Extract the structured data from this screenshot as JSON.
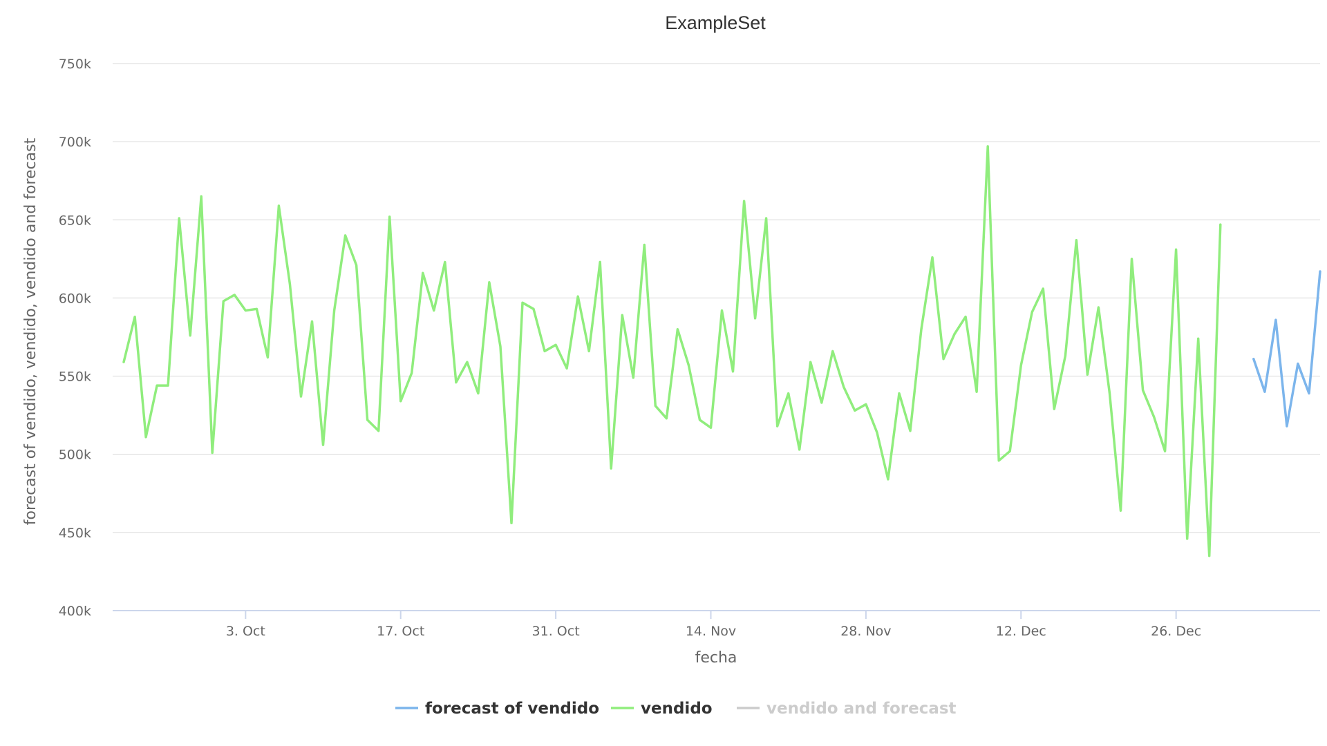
{
  "chart_data": {
    "type": "line",
    "title": "ExampleSet",
    "xlabel": "fecha",
    "ylabel": "forecast of vendido, vendido, vendido and forecast",
    "ylim": [
      400000,
      750000
    ],
    "yticks": [
      {
        "value": 400000,
        "label": "400k"
      },
      {
        "value": 450000,
        "label": "450k"
      },
      {
        "value": 500000,
        "label": "500k"
      },
      {
        "value": 550000,
        "label": "550k"
      },
      {
        "value": 600000,
        "label": "600k"
      },
      {
        "value": 650000,
        "label": "650k"
      },
      {
        "value": 700000,
        "label": "700k"
      },
      {
        "value": 750000,
        "label": "750k"
      }
    ],
    "xlim": [
      "2021-09-21",
      "2022-01-08"
    ],
    "xticks": [
      {
        "date": "2021-10-03",
        "label": "3. Oct"
      },
      {
        "date": "2021-10-17",
        "label": "17. Oct"
      },
      {
        "date": "2021-10-31",
        "label": "31. Oct"
      },
      {
        "date": "2021-11-14",
        "label": "14. Nov"
      },
      {
        "date": "2021-11-28",
        "label": "28. Nov"
      },
      {
        "date": "2021-12-12",
        "label": "12. Dec"
      },
      {
        "date": "2021-12-26",
        "label": "26. Dec"
      }
    ],
    "grid": true,
    "legend_position": "bottom-center",
    "series": [
      {
        "name": "forecast of vendido",
        "color": "#7cb5ec",
        "visible": true,
        "start": "2022-01-02",
        "values": [
          561000,
          540000,
          586000,
          518000,
          558000,
          539000,
          617000
        ]
      },
      {
        "name": "vendido",
        "color": "#90ed7d",
        "visible": true,
        "start": "2021-09-22",
        "values": [
          559000,
          588000,
          511000,
          544000,
          544000,
          651000,
          576000,
          665000,
          501000,
          598000,
          602000,
          592000,
          593000,
          562000,
          659000,
          609000,
          537000,
          585000,
          506000,
          592000,
          640000,
          621000,
          522000,
          515000,
          652000,
          534000,
          552000,
          616000,
          592000,
          623000,
          546000,
          559000,
          539000,
          610000,
          569000,
          456000,
          597000,
          593000,
          566000,
          570000,
          555000,
          601000,
          566000,
          623000,
          491000,
          589000,
          549000,
          634000,
          531000,
          523000,
          580000,
          557000,
          522000,
          517000,
          592000,
          553000,
          662000,
          587000,
          651000,
          518000,
          539000,
          503000,
          559000,
          533000,
          566000,
          543000,
          528000,
          532000,
          514000,
          484000,
          539000,
          515000,
          580000,
          626000,
          561000,
          577000,
          588000,
          540000,
          697000,
          496000,
          502000,
          557000,
          591000,
          606000,
          529000,
          563000,
          637000,
          551000,
          594000,
          539000,
          464000,
          625000,
          541000,
          524000,
          502000,
          631000,
          446000,
          574000,
          435000,
          647000
        ]
      },
      {
        "name": "vendido and forecast",
        "color": "#cccccc",
        "visible": false,
        "values": []
      }
    ]
  }
}
